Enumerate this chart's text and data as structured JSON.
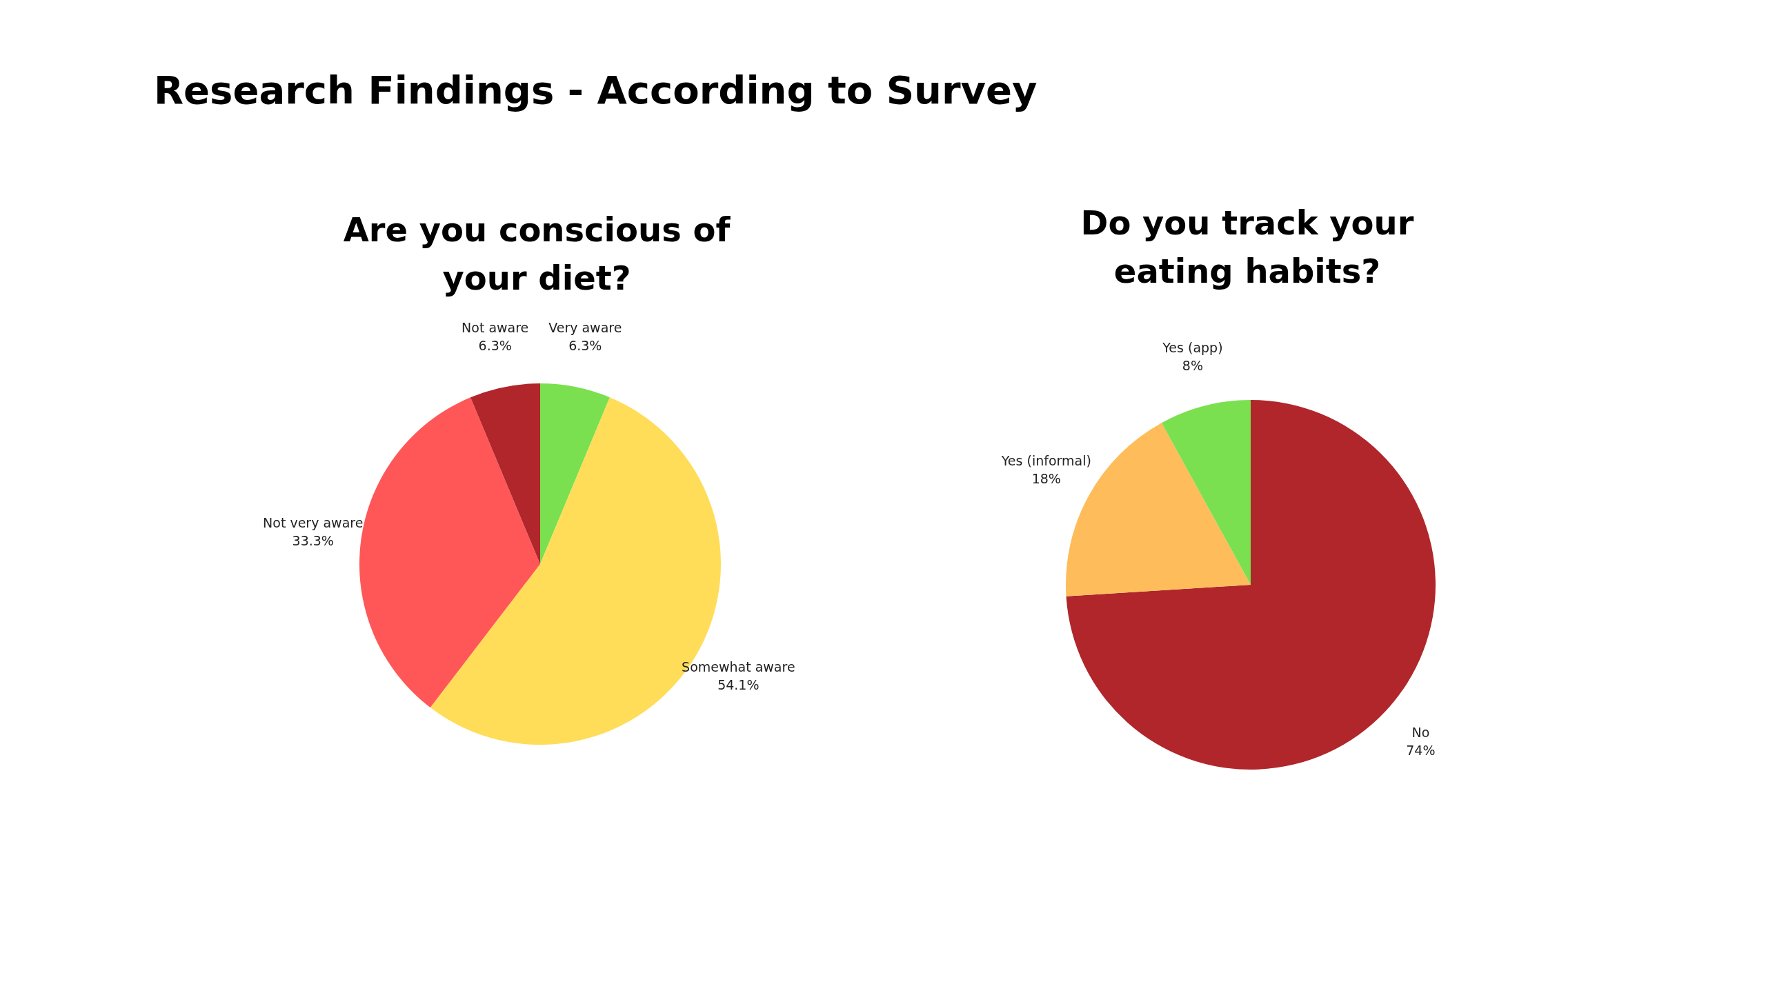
{
  "chart_data": [
    {
      "type": "pie",
      "title": "Are you conscious of your diet?",
      "annotations": [
        "Research Findings - According to Survey"
      ],
      "categories": [
        "Very aware",
        "Somewhat aware",
        "Not very aware",
        "Not aware"
      ],
      "values": [
        6.3,
        54.1,
        33.3,
        6.3
      ],
      "colors": [
        "#7be04f",
        "#ffdd59",
        "#ff5757",
        "#b0262b"
      ],
      "value_labels": [
        "6.3%",
        "54.1%",
        "33.3%",
        "6.3%"
      ],
      "legend": false
    },
    {
      "type": "pie",
      "title": "Do you track your eating habits?",
      "categories": [
        "No",
        "Yes (informal)",
        "Yes (app)"
      ],
      "values": [
        74,
        18,
        8
      ],
      "colors": [
        "#b0262b",
        "#ffbc5a",
        "#7be04f"
      ],
      "value_labels": [
        "74%",
        "18%",
        "8%"
      ],
      "legend": false
    }
  ]
}
